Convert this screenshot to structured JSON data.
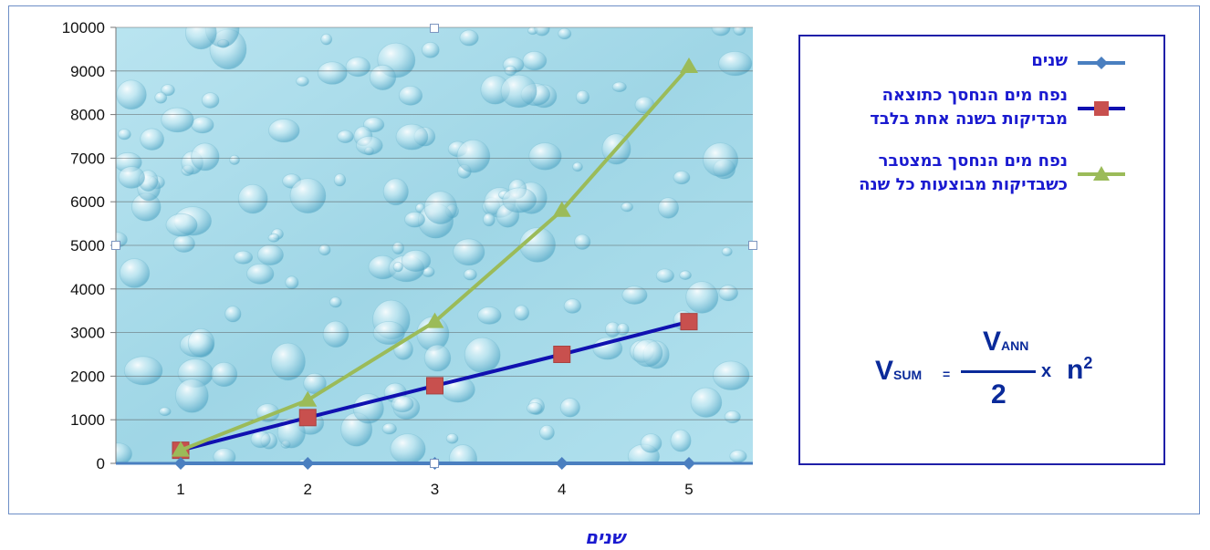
{
  "chart_data": {
    "type": "line",
    "categories": [
      "1",
      "2",
      "3",
      "4",
      "5"
    ],
    "y_ticks": [
      "0",
      "1000",
      "2000",
      "3000",
      "4000",
      "5000",
      "6000",
      "7000",
      "8000",
      "9000",
      "10000"
    ],
    "ylim": [
      0,
      10000
    ],
    "grid": true,
    "legend_position": "right",
    "series": [
      {
        "name": "שנים",
        "values": [
          0,
          0,
          0,
          0,
          0
        ],
        "color": "#4a7fc0",
        "marker": "diamond"
      },
      {
        "name": "נפח מים הנחסך כתוצאה מבדיקות בשנה אחת בלבד",
        "values": [
          300,
          1050,
          1780,
          2500,
          3250
        ],
        "color": "#1010b0",
        "marker": "square",
        "marker_color": "#c8504e"
      },
      {
        "name": "נפח מים הנחסך במצטבר כשבדיקות מבוצעות כל שנה",
        "values": [
          300,
          1450,
          3250,
          5800,
          9100
        ],
        "color": "#9bbb59",
        "marker": "triangle"
      }
    ],
    "xlabel": "שנים"
  },
  "formula": {
    "v": "V",
    "sum_sub": "SUM",
    "equals": "=",
    "ann_sub": "ANN",
    "denominator": "2",
    "times": "x",
    "n": "n",
    "exponent": "2"
  },
  "colors": {
    "plot_water": "#a9dbe9",
    "frame": "#6d8ec7",
    "legend_border": "#1f1fa8",
    "legend_text": "#1a1ad0"
  }
}
